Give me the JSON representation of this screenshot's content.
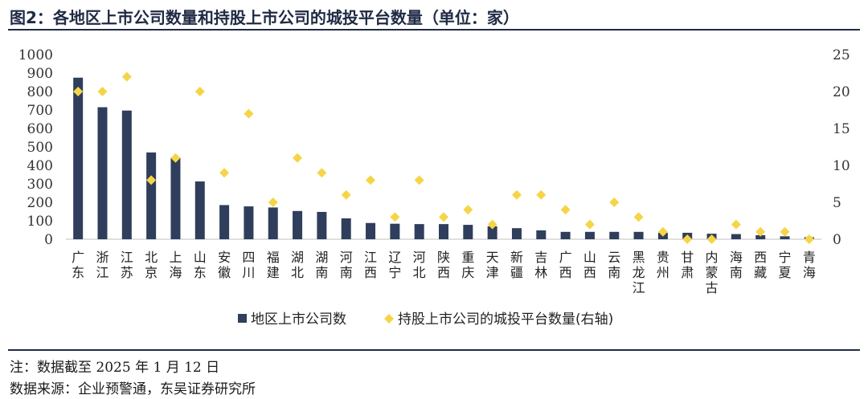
{
  "title": "图2：各地区上市公司数量和持股上市公司的城投平台数量（单位：家）",
  "note": "注：数据截至 2025 年 1 月 12 日",
  "source": "数据来源：企业预警通，东吴证券研究所",
  "colors": {
    "bar": "#2f3e5c",
    "marker": "#f5d547",
    "rule": "#1f2a44"
  },
  "chart_data": {
    "type": "bar",
    "categories": [
      "广东",
      "浙江",
      "江苏",
      "北京",
      "上海",
      "山东",
      "安徽",
      "四川",
      "福建",
      "湖北",
      "湖南",
      "河南",
      "江西",
      "辽宁",
      "河北",
      "陕西",
      "重庆",
      "天津",
      "新疆",
      "吉林",
      "广西",
      "山西",
      "云南",
      "黑龙江",
      "贵州",
      "甘肃",
      "内蒙古",
      "海南",
      "西藏",
      "宁夏",
      "青海"
    ],
    "series": [
      {
        "name": "地区上市公司数",
        "type": "bar",
        "axis": "left",
        "values": [
          875,
          715,
          697,
          470,
          442,
          313,
          185,
          178,
          172,
          153,
          148,
          113,
          88,
          84,
          82,
          82,
          78,
          70,
          60,
          48,
          40,
          40,
          40,
          40,
          35,
          35,
          30,
          28,
          22,
          16,
          11
        ]
      },
      {
        "name": "持股上市公司的城投平台数量(右轴)",
        "type": "scatter",
        "axis": "right",
        "values": [
          20,
          20,
          22,
          8,
          11,
          20,
          9,
          17,
          5,
          11,
          9,
          6,
          8,
          3,
          8,
          3,
          4,
          2,
          6,
          6,
          4,
          2,
          5,
          3,
          1,
          0,
          0,
          2,
          1,
          1,
          0
        ]
      }
    ],
    "y_left": {
      "min": 0,
      "max": 1000,
      "ticks": [
        "0",
        "100",
        "200",
        "300",
        "400",
        "500",
        "600",
        "700",
        "800",
        "900",
        "1000"
      ]
    },
    "y_right": {
      "min": 0,
      "max": 25,
      "ticks": [
        "0",
        "5",
        "10",
        "15",
        "20",
        "25"
      ]
    },
    "legend": [
      "地区上市公司数",
      "持股上市公司的城投平台数量(右轴)"
    ]
  }
}
